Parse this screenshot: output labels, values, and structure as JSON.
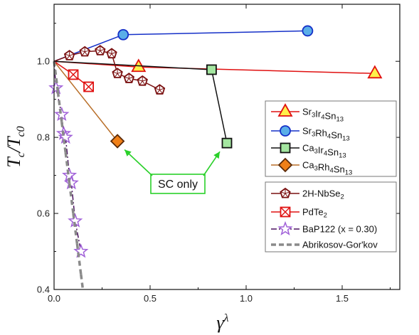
{
  "chart_data": {
    "type": "scatter",
    "xlim": [
      0,
      1.8
    ],
    "ylim": [
      0.4,
      1.15
    ],
    "xticks": [
      "0.0",
      "0.5",
      "1.0",
      "1.5"
    ],
    "yticks": [
      "0.4",
      "0.6",
      "0.8",
      "1.0"
    ],
    "xlabel": {
      "base": "γ",
      "sup": "λ"
    },
    "ylabel": {
      "num": "T",
      "num_sub": "c",
      "slash": "/",
      "den": "T",
      "den_sub": "c0"
    },
    "grid": false,
    "legend_position": "right",
    "series": [
      {
        "name": "Sr3Ir4Sn13",
        "label": {
          "parts": [
            [
              "Sr",
              "n"
            ],
            [
              "3",
              "s"
            ],
            [
              "Ir",
              "n"
            ],
            [
              "4",
              "s"
            ],
            [
              "Sn",
              "n"
            ],
            [
              "13",
              "s"
            ]
          ]
        },
        "marker": "triangle",
        "fill": "#fff04a",
        "stroke": "#e01010",
        "line": "#e01010",
        "dash": "solid",
        "points": [
          [
            0.0,
            1.0
          ],
          [
            0.44,
            0.985
          ],
          [
            1.67,
            0.968
          ]
        ],
        "segments": [
          [
            0,
            1
          ],
          [
            1,
            2
          ]
        ]
      },
      {
        "name": "Sr3Rh4Sn13",
        "label": {
          "parts": [
            [
              "Sr",
              "n"
            ],
            [
              "3",
              "s"
            ],
            [
              "Rh",
              "n"
            ],
            [
              "4",
              "s"
            ],
            [
              "Sn",
              "n"
            ],
            [
              "13",
              "s"
            ]
          ]
        },
        "marker": "circle",
        "fill": "#5aaee8",
        "stroke": "#1530c8",
        "line": "#1530c8",
        "dash": "solid",
        "points": [
          [
            0.0,
            1.0
          ],
          [
            0.36,
            1.07
          ],
          [
            1.32,
            1.08
          ]
        ],
        "segments": [
          [
            0,
            1
          ],
          [
            1,
            2
          ]
        ]
      },
      {
        "name": "Ca3Ir4Sn13",
        "label": {
          "parts": [
            [
              "Ca",
              "n"
            ],
            [
              "3",
              "s"
            ],
            [
              "Ir",
              "n"
            ],
            [
              "4",
              "s"
            ],
            [
              "Sn",
              "n"
            ],
            [
              "13",
              "s"
            ]
          ]
        },
        "marker": "square",
        "fill": "#a4e6a0",
        "stroke": "#111111",
        "line": "#111111",
        "dash": "solid",
        "points": [
          [
            0.0,
            1.0
          ],
          [
            0.82,
            0.978
          ],
          [
            0.9,
            0.785
          ]
        ],
        "segments": [
          [
            0,
            1
          ],
          [
            1,
            2
          ]
        ]
      },
      {
        "name": "Ca3Rh4Sn13",
        "label": {
          "parts": [
            [
              "Ca",
              "n"
            ],
            [
              "3",
              "s"
            ],
            [
              "Rh",
              "n"
            ],
            [
              "4",
              "s"
            ],
            [
              "Sn",
              "n"
            ],
            [
              "13",
              "s"
            ]
          ]
        },
        "marker": "diamond",
        "fill": "#f08018",
        "stroke": "#5a2a08",
        "line": "#b86e28",
        "dash": "solid",
        "points": [
          [
            0.0,
            1.0
          ],
          [
            0.33,
            0.79
          ]
        ],
        "segments": [
          [
            0,
            1
          ]
        ]
      },
      {
        "name": "2H-NbSe2",
        "label": {
          "parts": [
            [
              "2H-NbSe",
              "n"
            ],
            [
              "2",
              "s"
            ]
          ]
        },
        "marker": "pentagon",
        "fill": "#ffffff",
        "stroke": "#7a1010",
        "line": "#7a1010",
        "dash": "solid",
        "points": [
          [
            0.0,
            1.0
          ],
          [
            0.08,
            1.015
          ],
          [
            0.16,
            1.025
          ],
          [
            0.24,
            1.028
          ],
          [
            0.3,
            1.02
          ],
          [
            0.33,
            0.968
          ],
          [
            0.39,
            0.955
          ],
          [
            0.46,
            0.948
          ],
          [
            0.55,
            0.925
          ]
        ],
        "segments": [
          [
            0,
            1
          ],
          [
            1,
            2
          ],
          [
            2,
            3
          ],
          [
            3,
            4
          ],
          [
            4,
            5
          ],
          [
            5,
            6
          ],
          [
            6,
            7
          ],
          [
            7,
            8
          ]
        ]
      },
      {
        "name": "PdTe2",
        "label": {
          "parts": [
            [
              "PdTe",
              "n"
            ],
            [
              "2",
              "s"
            ]
          ]
        },
        "marker": "xsquare",
        "fill": "#ffffff",
        "stroke": "#e01010",
        "line": "#e01010",
        "dash": "solid",
        "points": [
          [
            0.0,
            1.0
          ],
          [
            0.1,
            0.965
          ],
          [
            0.18,
            0.933
          ]
        ],
        "segments": [
          [
            0,
            1
          ],
          [
            1,
            2
          ]
        ]
      },
      {
        "name": "BaP122 (x = 0.30)",
        "label": {
          "parts": [
            [
              "BaP122 (x = 0.30)",
              "n"
            ]
          ]
        },
        "marker": "star",
        "fill": "#ffffff",
        "stroke": "#a060d8",
        "line": "#4a1060",
        "dash": "dashdot",
        "points": [
          [
            0.0,
            1.0
          ],
          [
            0.01,
            0.93
          ],
          [
            0.04,
            0.86
          ],
          [
            0.05,
            0.81
          ],
          [
            0.06,
            0.8
          ],
          [
            0.08,
            0.7
          ],
          [
            0.09,
            0.68
          ],
          [
            0.11,
            0.58
          ],
          [
            0.14,
            0.5
          ]
        ],
        "segments": [
          [
            0,
            1
          ],
          [
            1,
            2
          ],
          [
            2,
            3
          ],
          [
            3,
            4
          ],
          [
            4,
            5
          ],
          [
            5,
            6
          ],
          [
            6,
            7
          ],
          [
            7,
            8
          ]
        ]
      },
      {
        "name": "Abrikosov-Gor'kov",
        "label": {
          "parts": [
            [
              "Abrikosov-Gor'kov",
              "n"
            ]
          ]
        },
        "marker": "none",
        "fill": "none",
        "stroke": "#8a8a8a",
        "line": "#8a8a8a",
        "dash": "dash",
        "points": [
          [
            0.0,
            1.0
          ],
          [
            0.02,
            0.92
          ],
          [
            0.04,
            0.84
          ],
          [
            0.06,
            0.76
          ],
          [
            0.08,
            0.68
          ],
          [
            0.1,
            0.6
          ],
          [
            0.12,
            0.52
          ],
          [
            0.14,
            0.44
          ],
          [
            0.15,
            0.4
          ]
        ],
        "segments": [
          [
            0,
            1
          ],
          [
            1,
            2
          ],
          [
            2,
            3
          ],
          [
            3,
            4
          ],
          [
            4,
            5
          ],
          [
            5,
            6
          ],
          [
            6,
            7
          ],
          [
            7,
            8
          ]
        ]
      }
    ],
    "annotation": {
      "text": "SC only",
      "color": "#2ad02a",
      "targets": [
        [
          0.33,
          0.79
        ],
        [
          0.9,
          0.785
        ]
      ]
    }
  }
}
